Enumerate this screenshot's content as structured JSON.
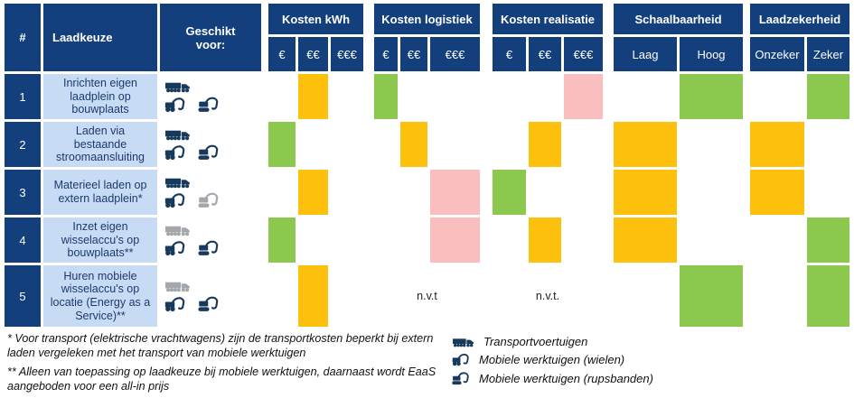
{
  "chart_data": {
    "type": "table",
    "left_headers": {
      "num": "#",
      "choice": "Laadkeuze",
      "suitable_for": "Geschikt voor:"
    },
    "groups": [
      {
        "id": "kosten_kwh",
        "label": "Kosten kWh",
        "cols": [
          "€",
          "€€",
          "€€€"
        ]
      },
      {
        "id": "kosten_logistiek",
        "label": "Kosten logistiek",
        "cols": [
          "€",
          "€€",
          "€€€"
        ]
      },
      {
        "id": "kosten_realisatie",
        "label": "Kosten realisatie",
        "cols": [
          "€",
          "€€",
          "€€€"
        ]
      },
      {
        "id": "schaalbaarheid",
        "label": "Schaalbaarheid",
        "cols": [
          "Laag",
          "Hoog"
        ]
      },
      {
        "id": "laadzekerheid",
        "label": "Laadzekerheid",
        "cols": [
          "Onzeker",
          "Zeker"
        ]
      }
    ],
    "rows": [
      {
        "num": "1",
        "label": "Inrichten eigen laadplein op bouwplaats",
        "suitable_icons": [
          {
            "icon": "transport-truck",
            "state": "active"
          },
          {
            "icon": "wheeled-excavator",
            "state": "active"
          },
          {
            "icon": "tracked-excavator",
            "state": "active"
          }
        ],
        "ratings": {
          "kosten_kwh": {
            "col": "€€",
            "level": "medium"
          },
          "kosten_logistiek": {
            "col": "€",
            "level": "good"
          },
          "kosten_realisatie": {
            "col": "€€€",
            "level": "poor"
          },
          "schaalbaarheid": {
            "col": "Hoog",
            "level": "good"
          },
          "laadzekerheid": {
            "col": "Zeker",
            "level": "good"
          }
        }
      },
      {
        "num": "2",
        "label": "Laden via bestaande stroomaansluiting",
        "suitable_icons": [
          {
            "icon": "transport-truck",
            "state": "active"
          },
          {
            "icon": "wheeled-excavator",
            "state": "active"
          },
          {
            "icon": "tracked-excavator",
            "state": "active"
          }
        ],
        "ratings": {
          "kosten_kwh": {
            "col": "€",
            "level": "good"
          },
          "kosten_logistiek": {
            "col": "€€",
            "level": "medium"
          },
          "kosten_realisatie": {
            "col": "€€",
            "level": "medium"
          },
          "schaalbaarheid": {
            "col": "Laag",
            "level": "medium"
          },
          "laadzekerheid": {
            "col": "Onzeker",
            "level": "medium"
          }
        }
      },
      {
        "num": "3",
        "label": "Materieel laden op extern laadplein*",
        "suitable_icons": [
          {
            "icon": "transport-truck",
            "state": "active"
          },
          {
            "icon": "wheeled-excavator",
            "state": "active"
          },
          {
            "icon": "tracked-excavator",
            "state": "inactive"
          }
        ],
        "ratings": {
          "kosten_kwh": {
            "col": "€€",
            "level": "medium"
          },
          "kosten_logistiek": {
            "col": "€€€",
            "level": "poor"
          },
          "kosten_realisatie": {
            "col": "€",
            "level": "good"
          },
          "schaalbaarheid": {
            "col": "Laag",
            "level": "medium"
          },
          "laadzekerheid": {
            "col": "Onzeker",
            "level": "medium"
          }
        }
      },
      {
        "num": "4",
        "label": "Inzet eigen wisselaccu's op bouwplaats**",
        "suitable_icons": [
          {
            "icon": "transport-truck",
            "state": "inactive"
          },
          {
            "icon": "wheeled-excavator",
            "state": "active"
          },
          {
            "icon": "tracked-excavator",
            "state": "active"
          }
        ],
        "ratings": {
          "kosten_kwh": {
            "col": "€",
            "level": "good"
          },
          "kosten_logistiek": {
            "col": "€€€",
            "level": "poor"
          },
          "kosten_realisatie": {
            "col": "€€",
            "level": "medium"
          },
          "schaalbaarheid": {
            "col": "Laag",
            "level": "medium"
          },
          "laadzekerheid": {
            "col": "Zeker",
            "level": "good"
          }
        }
      },
      {
        "num": "5",
        "label": "Huren mobiele wisselaccu's op locatie (Energy as a Service)**",
        "suitable_icons": [
          {
            "icon": "transport-truck",
            "state": "inactive"
          },
          {
            "icon": "wheeled-excavator",
            "state": "active"
          },
          {
            "icon": "tracked-excavator",
            "state": "active"
          }
        ],
        "ratings": {
          "kosten_kwh": {
            "col": "€€",
            "level": "medium"
          },
          "kosten_logistiek": {
            "nvt": "n.v.t"
          },
          "kosten_realisatie": {
            "nvt": "n.v.t."
          },
          "schaalbaarheid": {
            "col": "Hoog",
            "level": "good"
          },
          "laadzekerheid": {
            "col": "Zeker",
            "level": "good"
          }
        }
      }
    ],
    "level_colors": {
      "good": "#8dc84e",
      "medium": "#fdc10d",
      "poor": "#f9bebd"
    }
  },
  "footnotes": [
    "* Voor transport (elektrische vrachtwagens) zijn de transportkosten beperkt bij extern laden vergeleken met het transport van mobiele werktuigen",
    "** Alleen van toepassing op laadkeuze bij mobiele werktuigen, daarnaast wordt EaaS aangeboden voor een all-in prijs"
  ],
  "legend": [
    {
      "icon": "transport-truck",
      "label": "Transportvoertuigen"
    },
    {
      "icon": "wheeled-excavator",
      "label": "Mobiele werktuigen (wielen)"
    },
    {
      "icon": "tracked-excavator",
      "label": "Mobiele werktuigen (rupsbanden)"
    }
  ],
  "colors": {
    "header_bg": "#143f7d",
    "row_label_bg": "#c8dbf5",
    "icon_active": "#17395c",
    "icon_inactive": "#a3a7ab"
  }
}
